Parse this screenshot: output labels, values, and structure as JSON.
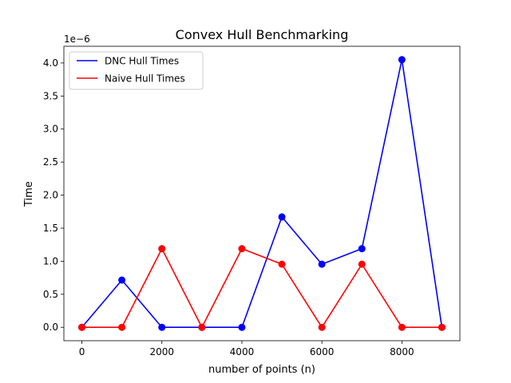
{
  "chart_data": {
    "type": "line",
    "title": "Convex Hull Benchmarking",
    "xlabel": "number of points (n)",
    "ylabel": "Time",
    "y_offset_label": "1e−6",
    "xlim": [
      -450,
      9450
    ],
    "ylim": [
      -2.025e-07,
      4.2525e-06
    ],
    "x_ticks": [
      0,
      2000,
      4000,
      6000,
      8000
    ],
    "x_tick_labels": [
      "0",
      "2000",
      "4000",
      "6000",
      "8000"
    ],
    "y_ticks": [
      0,
      5e-07,
      1e-06,
      1.5e-06,
      2e-06,
      2.5e-06,
      3e-06,
      3.5e-06,
      4e-06
    ],
    "y_tick_labels": [
      "0.0",
      "0.5",
      "1.0",
      "1.5",
      "2.0",
      "2.5",
      "3.0",
      "3.5",
      "4.0"
    ],
    "grid": false,
    "legend_position": "top-left",
    "x": [
      0,
      1000,
      2000,
      3000,
      4000,
      5000,
      6000,
      7000,
      8000,
      9000
    ],
    "series": [
      {
        "name": "DNC Hull Times",
        "color": "#0000ff",
        "values": [
          0,
          7.15e-07,
          0,
          0,
          0,
          1.67e-06,
          9.55e-07,
          1.19e-06,
          4.05e-06,
          0
        ]
      },
      {
        "name": "Naive Hull Times",
        "color": "#ff0000",
        "values": [
          0,
          0,
          1.19e-06,
          0,
          1.19e-06,
          9.55e-07,
          0,
          9.55e-07,
          0,
          0
        ]
      }
    ]
  }
}
